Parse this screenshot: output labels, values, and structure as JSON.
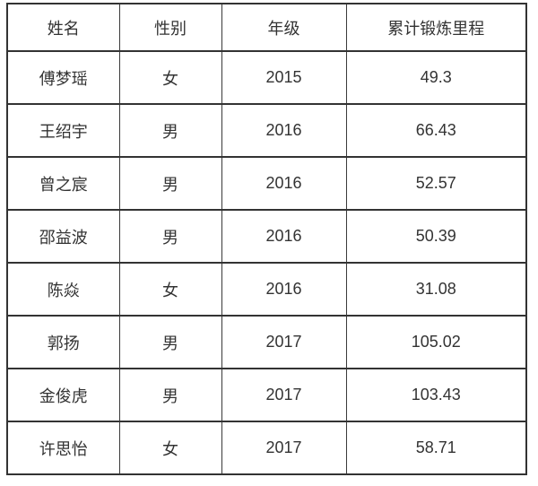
{
  "table": {
    "columns": [
      "姓名",
      "性别",
      "年级",
      "累计锻炼里程"
    ],
    "rows": [
      [
        "傅梦瑶",
        "女",
        "2015",
        "49.3"
      ],
      [
        "王绍宇",
        "男",
        "2016",
        "66.43"
      ],
      [
        "曾之宸",
        "男",
        "2016",
        "52.57"
      ],
      [
        "邵益波",
        "男",
        "2016",
        "50.39"
      ],
      [
        "陈焱",
        "女",
        "2016",
        "31.08"
      ],
      [
        "郭扬",
        "男",
        "2017",
        "105.02"
      ],
      [
        "金俊虎",
        "男",
        "2017",
        "103.43"
      ],
      [
        "许思怡",
        "女",
        "2017",
        "58.71"
      ]
    ],
    "colors": {
      "border": "#333333",
      "text": "#333333",
      "background": "#ffffff"
    }
  }
}
